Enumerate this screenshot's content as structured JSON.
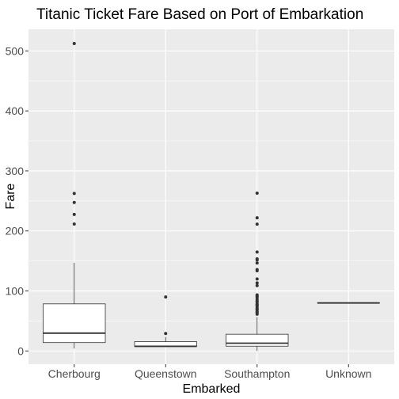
{
  "chart_data": {
    "type": "box",
    "title": "Titanic Ticket Fare Based on Port of Embarkation",
    "xlabel": "Embarked",
    "ylabel": "Fare",
    "ylim": [
      -22,
      536
    ],
    "yticks": [
      0,
      100,
      200,
      300,
      400,
      500
    ],
    "grid": true,
    "legend": "none",
    "colors": {
      "panel": "#ebebeb",
      "grid": "#ffffff",
      "box_fill": "#ffffff",
      "box_line": "#333333",
      "outlier": "#333333"
    },
    "categories": [
      "Cherbourg",
      "Queenstown",
      "Southampton",
      "Unknown"
    ],
    "boxes": [
      {
        "category": "Cherbourg",
        "whisker_low": 4,
        "q1": 14,
        "median": 29.7,
        "q3": 78.5,
        "whisker_high": 147,
        "outliers": [
          512.3,
          262.4,
          247.5,
          227.5,
          211.5
        ]
      },
      {
        "category": "Queenstown",
        "whisker_low": 6.8,
        "q1": 7.75,
        "median": 7.75,
        "q3": 15.5,
        "whisker_high": 23.3,
        "outliers": [
          29.1,
          90
        ]
      },
      {
        "category": "Southampton",
        "whisker_low": 0,
        "q1": 8,
        "median": 13,
        "q3": 27.9,
        "whisker_high": 56.5,
        "outliers": [
          263,
          221.8,
          211.3,
          164.9,
          153.5,
          151.6,
          146.5,
          135.6,
          133.7,
          120,
          113.3,
          108.9,
          93.5,
          91.1,
          90,
          86.5,
          83.2,
          82.2,
          79.7,
          77.3,
          76.7,
          76,
          73.5,
          71,
          69.6,
          69.3,
          66.6,
          65,
          63.4,
          61.2
        ]
      },
      {
        "category": "Unknown",
        "whisker_low": 80,
        "q1": 80,
        "median": 80,
        "q3": 80,
        "whisker_high": 80,
        "outliers": []
      }
    ]
  }
}
